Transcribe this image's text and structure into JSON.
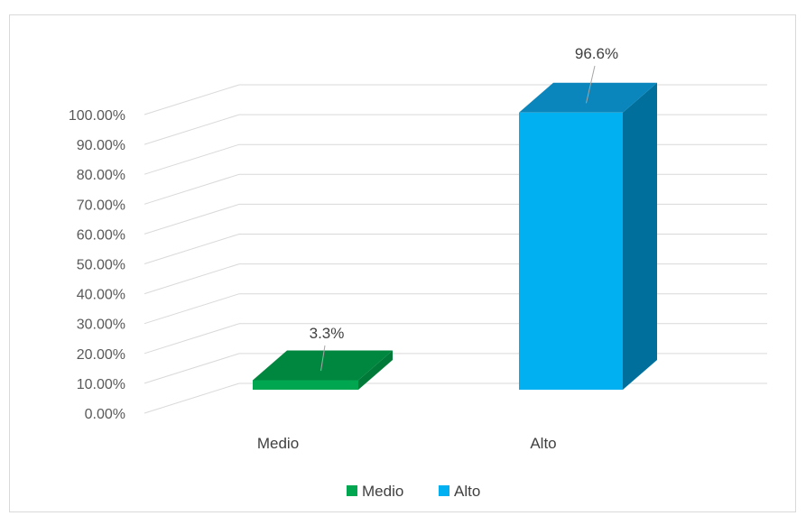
{
  "chart_data": {
    "type": "bar",
    "style": "3d-column",
    "categories": [
      "Medio",
      "Alto"
    ],
    "values": [
      3.3,
      96.6
    ],
    "data_labels": [
      "3.3%",
      "96.6%"
    ],
    "y_ticks": [
      "0.00%",
      "10.00%",
      "20.00%",
      "30.00%",
      "40.00%",
      "50.00%",
      "60.00%",
      "70.00%",
      "80.00%",
      "90.00%",
      "100.00%"
    ],
    "ylim": [
      0,
      100
    ],
    "grid": true,
    "legend": {
      "placement": "bottom",
      "entries": [
        {
          "name": "Medio",
          "color": "#00a650"
        },
        {
          "name": "Alto",
          "color": "#00b0f0"
        }
      ]
    },
    "colors": {
      "Medio": {
        "front": "#00a650",
        "top": "#00873f",
        "side": "#007a38"
      },
      "Alto": {
        "front": "#00b0f0",
        "top": "#0a86bd",
        "side": "#006f9c"
      }
    }
  }
}
